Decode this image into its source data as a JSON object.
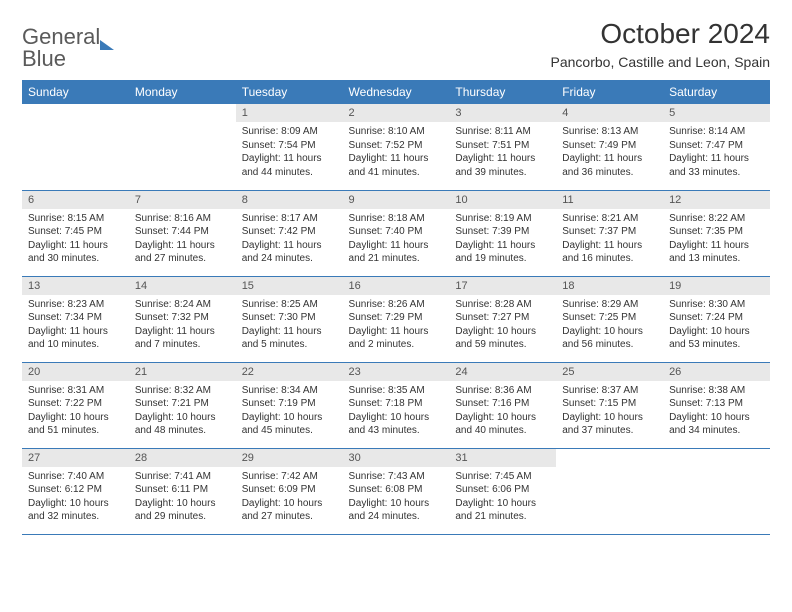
{
  "logo": {
    "line1": "General",
    "line2": "Blue"
  },
  "title": "October 2024",
  "location": "Pancorbo, Castille and Leon, Spain",
  "colors": {
    "header_bg": "#3a7ab8",
    "header_text": "#ffffff",
    "daynum_bg": "#e8e8e8",
    "border": "#3a7ab8",
    "body_text": "#333333"
  },
  "day_headers": [
    "Sunday",
    "Monday",
    "Tuesday",
    "Wednesday",
    "Thursday",
    "Friday",
    "Saturday"
  ],
  "weeks": [
    [
      null,
      null,
      {
        "n": "1",
        "sr": "8:09 AM",
        "ss": "7:54 PM",
        "dl": "11 hours and 44 minutes."
      },
      {
        "n": "2",
        "sr": "8:10 AM",
        "ss": "7:52 PM",
        "dl": "11 hours and 41 minutes."
      },
      {
        "n": "3",
        "sr": "8:11 AM",
        "ss": "7:51 PM",
        "dl": "11 hours and 39 minutes."
      },
      {
        "n": "4",
        "sr": "8:13 AM",
        "ss": "7:49 PM",
        "dl": "11 hours and 36 minutes."
      },
      {
        "n": "5",
        "sr": "8:14 AM",
        "ss": "7:47 PM",
        "dl": "11 hours and 33 minutes."
      }
    ],
    [
      {
        "n": "6",
        "sr": "8:15 AM",
        "ss": "7:45 PM",
        "dl": "11 hours and 30 minutes."
      },
      {
        "n": "7",
        "sr": "8:16 AM",
        "ss": "7:44 PM",
        "dl": "11 hours and 27 minutes."
      },
      {
        "n": "8",
        "sr": "8:17 AM",
        "ss": "7:42 PM",
        "dl": "11 hours and 24 minutes."
      },
      {
        "n": "9",
        "sr": "8:18 AM",
        "ss": "7:40 PM",
        "dl": "11 hours and 21 minutes."
      },
      {
        "n": "10",
        "sr": "8:19 AM",
        "ss": "7:39 PM",
        "dl": "11 hours and 19 minutes."
      },
      {
        "n": "11",
        "sr": "8:21 AM",
        "ss": "7:37 PM",
        "dl": "11 hours and 16 minutes."
      },
      {
        "n": "12",
        "sr": "8:22 AM",
        "ss": "7:35 PM",
        "dl": "11 hours and 13 minutes."
      }
    ],
    [
      {
        "n": "13",
        "sr": "8:23 AM",
        "ss": "7:34 PM",
        "dl": "11 hours and 10 minutes."
      },
      {
        "n": "14",
        "sr": "8:24 AM",
        "ss": "7:32 PM",
        "dl": "11 hours and 7 minutes."
      },
      {
        "n": "15",
        "sr": "8:25 AM",
        "ss": "7:30 PM",
        "dl": "11 hours and 5 minutes."
      },
      {
        "n": "16",
        "sr": "8:26 AM",
        "ss": "7:29 PM",
        "dl": "11 hours and 2 minutes."
      },
      {
        "n": "17",
        "sr": "8:28 AM",
        "ss": "7:27 PM",
        "dl": "10 hours and 59 minutes."
      },
      {
        "n": "18",
        "sr": "8:29 AM",
        "ss": "7:25 PM",
        "dl": "10 hours and 56 minutes."
      },
      {
        "n": "19",
        "sr": "8:30 AM",
        "ss": "7:24 PM",
        "dl": "10 hours and 53 minutes."
      }
    ],
    [
      {
        "n": "20",
        "sr": "8:31 AM",
        "ss": "7:22 PM",
        "dl": "10 hours and 51 minutes."
      },
      {
        "n": "21",
        "sr": "8:32 AM",
        "ss": "7:21 PM",
        "dl": "10 hours and 48 minutes."
      },
      {
        "n": "22",
        "sr": "8:34 AM",
        "ss": "7:19 PM",
        "dl": "10 hours and 45 minutes."
      },
      {
        "n": "23",
        "sr": "8:35 AM",
        "ss": "7:18 PM",
        "dl": "10 hours and 43 minutes."
      },
      {
        "n": "24",
        "sr": "8:36 AM",
        "ss": "7:16 PM",
        "dl": "10 hours and 40 minutes."
      },
      {
        "n": "25",
        "sr": "8:37 AM",
        "ss": "7:15 PM",
        "dl": "10 hours and 37 minutes."
      },
      {
        "n": "26",
        "sr": "8:38 AM",
        "ss": "7:13 PM",
        "dl": "10 hours and 34 minutes."
      }
    ],
    [
      {
        "n": "27",
        "sr": "7:40 AM",
        "ss": "6:12 PM",
        "dl": "10 hours and 32 minutes."
      },
      {
        "n": "28",
        "sr": "7:41 AM",
        "ss": "6:11 PM",
        "dl": "10 hours and 29 minutes."
      },
      {
        "n": "29",
        "sr": "7:42 AM",
        "ss": "6:09 PM",
        "dl": "10 hours and 27 minutes."
      },
      {
        "n": "30",
        "sr": "7:43 AM",
        "ss": "6:08 PM",
        "dl": "10 hours and 24 minutes."
      },
      {
        "n": "31",
        "sr": "7:45 AM",
        "ss": "6:06 PM",
        "dl": "10 hours and 21 minutes."
      },
      null,
      null
    ]
  ],
  "labels": {
    "sunrise": "Sunrise:",
    "sunset": "Sunset:",
    "daylight": "Daylight:"
  }
}
